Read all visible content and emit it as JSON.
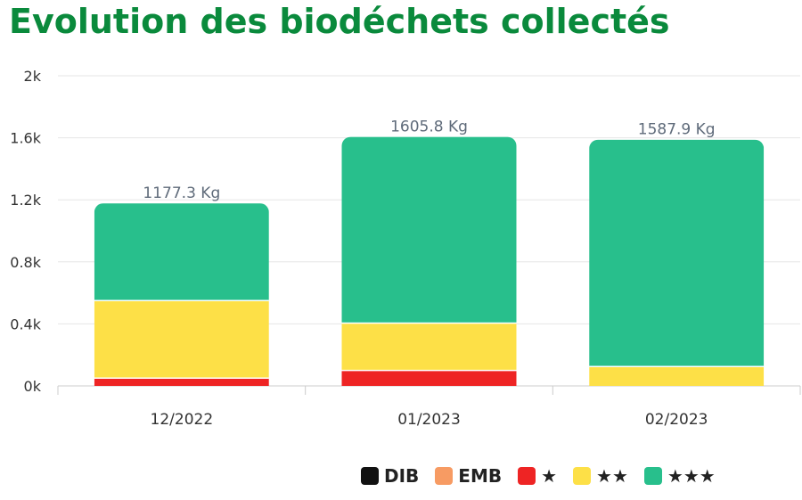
{
  "title": "Evolution des biodéchets collectés",
  "colors": {
    "DIB": "#111111",
    "EMB": "#f79b63",
    "one_star": "#ee2424",
    "two_star": "#fde047",
    "three_star": "#28bf8c",
    "axis_text": "#333333",
    "total_label": "#5f6b7a",
    "grid": "#e6e6e6"
  },
  "legend": [
    {
      "key": "DIB",
      "label": "DIB"
    },
    {
      "key": "EMB",
      "label": "EMB"
    },
    {
      "key": "one_star",
      "label": "★"
    },
    {
      "key": "two_star",
      "label": "★★"
    },
    {
      "key": "three_star",
      "label": "★★★"
    }
  ],
  "chart_data": {
    "type": "bar",
    "stacked": true,
    "categories": [
      "12/2022",
      "01/2023",
      "02/2023"
    ],
    "series": [
      {
        "name": "DIB",
        "key": "DIB",
        "values": [
          0,
          0,
          0
        ]
      },
      {
        "name": "EMB",
        "key": "EMB",
        "values": [
          0,
          0,
          0
        ]
      },
      {
        "name": "★",
        "key": "one_star",
        "values": [
          50,
          100,
          0
        ]
      },
      {
        "name": "★★",
        "key": "two_star",
        "values": [
          500,
          305,
          125
        ]
      },
      {
        "name": "★★★",
        "key": "three_star",
        "values": [
          627.3,
          1200.8,
          1462.9
        ]
      }
    ],
    "totals_labels": [
      "1177.3 Kg",
      "1605.8 Kg",
      "1587.9 Kg"
    ],
    "ylim": [
      0,
      2000
    ],
    "yticks": [
      {
        "value": 0,
        "label": "0k"
      },
      {
        "value": 400,
        "label": "0.4k"
      },
      {
        "value": 800,
        "label": "0.8k"
      },
      {
        "value": 1200,
        "label": "1.2k"
      },
      {
        "value": 1600,
        "label": "1.6k"
      },
      {
        "value": 2000,
        "label": "2k"
      }
    ],
    "grid": true,
    "legend_position": "bottom-right"
  }
}
